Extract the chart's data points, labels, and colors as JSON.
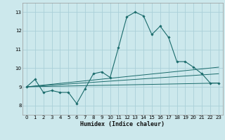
{
  "xlabel": "Humidex (Indice chaleur)",
  "ylabel": "",
  "background_color": "#cce8ec",
  "grid_color": "#aad0d8",
  "line_color": "#1a6b6b",
  "xlim": [
    -0.5,
    23.5
  ],
  "ylim": [
    7.5,
    13.5
  ],
  "xticks": [
    0,
    1,
    2,
    3,
    4,
    5,
    6,
    7,
    8,
    9,
    10,
    11,
    12,
    13,
    14,
    15,
    16,
    17,
    18,
    19,
    20,
    21,
    22,
    23
  ],
  "yticks": [
    8,
    9,
    10,
    11,
    12,
    13
  ],
  "series": [
    {
      "x": [
        0,
        1,
        2,
        3,
        4,
        5,
        6,
        7,
        8,
        9,
        10,
        11,
        12,
        13,
        14,
        15,
        16,
        17,
        18,
        19,
        20,
        21,
        22,
        23
      ],
      "y": [
        9.0,
        9.4,
        8.7,
        8.8,
        8.7,
        8.7,
        8.1,
        8.9,
        9.7,
        9.8,
        9.5,
        11.1,
        12.75,
        13.0,
        12.8,
        11.8,
        12.25,
        11.65,
        10.35,
        10.35,
        10.05,
        9.7,
        9.2,
        9.2
      ]
    },
    {
      "x": [
        0,
        23
      ],
      "y": [
        9.0,
        9.2
      ]
    },
    {
      "x": [
        0,
        23
      ],
      "y": [
        9.0,
        9.7
      ]
    },
    {
      "x": [
        0,
        23
      ],
      "y": [
        9.0,
        10.05
      ]
    }
  ]
}
